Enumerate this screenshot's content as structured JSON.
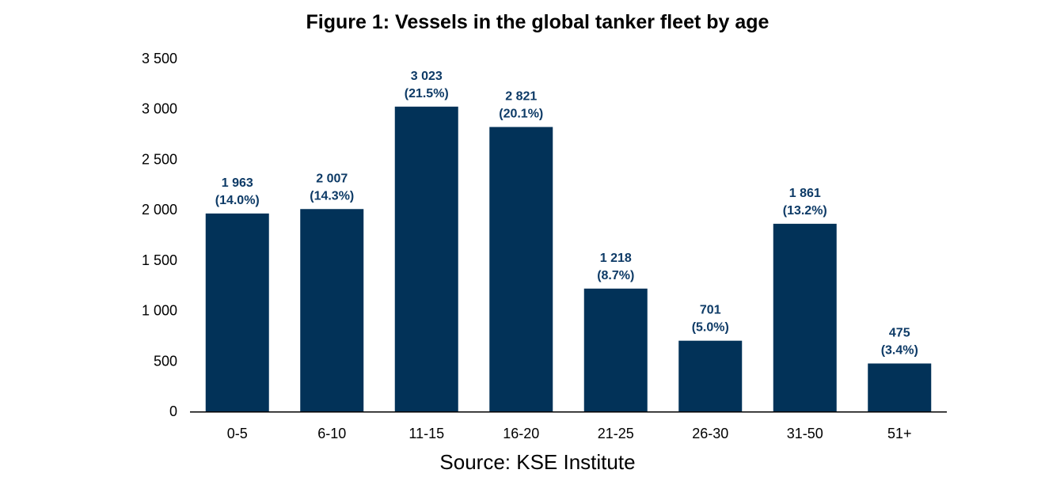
{
  "chart_data": {
    "type": "bar",
    "title": "Figure 1: Vessels in the global tanker fleet by age",
    "source": "Source: KSE Institute",
    "categories": [
      "0-5",
      "6-10",
      "11-15",
      "16-20",
      "21-25",
      "26-30",
      "31-50",
      "51+"
    ],
    "values": [
      1963,
      2007,
      3023,
      2821,
      1218,
      701,
      1861,
      475
    ],
    "value_labels": [
      "1 963",
      "2 007",
      "3 023",
      "2 821",
      "1 218",
      "701",
      "1 861",
      "475"
    ],
    "percent_labels": [
      "(14.0%)",
      "(14.3%)",
      "(21.5%)",
      "(20.1%)",
      "(8.7%)",
      "(5.0%)",
      "(13.2%)",
      "(3.4%)"
    ],
    "y_ticks": [
      0,
      500,
      1000,
      1500,
      2000,
      2500,
      3000,
      3500
    ],
    "y_tick_labels": [
      "0",
      "500",
      "1 000",
      "1 500",
      "2 000",
      "2 500",
      "3 000",
      "3 500"
    ],
    "ylim": [
      0,
      3500
    ],
    "xlabel": "",
    "ylabel": "",
    "grid": false,
    "legend": "none",
    "bar_color": "#023258",
    "label_color": "#0d3a66"
  }
}
